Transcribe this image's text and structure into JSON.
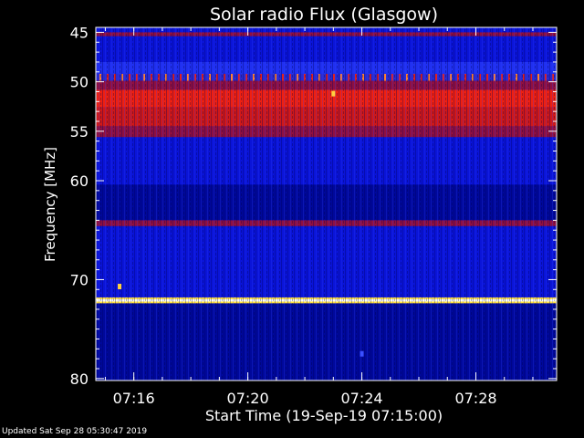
{
  "chart_data": {
    "type": "heatmap",
    "title": "Solar radio Flux (Glasgow)",
    "xlabel": "Start Time (19-Sep-19 07:15:00)",
    "ylabel": "Frequency [MHz]",
    "x_range": [
      "07:14:40",
      "07:30:50"
    ],
    "y_range": [
      44.5,
      80.2
    ],
    "y_ticks": [
      45,
      50,
      55,
      60,
      70,
      80
    ],
    "y_tick_labels": [
      "45",
      "50",
      "55",
      "60",
      "70",
      "80"
    ],
    "x_ticks": [
      "07:16",
      "07:20",
      "07:24",
      "07:28"
    ],
    "colormap": [
      "#00008a",
      "#0010d0",
      "#1e2cf0",
      "#b01040",
      "#e01010",
      "#ff4020",
      "#ffd040",
      "#fffff0"
    ],
    "bands": [
      {
        "from": 44.5,
        "to": 45.0,
        "level": "blue"
      },
      {
        "from": 45.0,
        "to": 45.4,
        "level": "dark-red"
      },
      {
        "from": 45.4,
        "to": 48.0,
        "level": "blue"
      },
      {
        "from": 48.0,
        "to": 49.2,
        "level": "medium-blue"
      },
      {
        "from": 49.2,
        "to": 49.9,
        "level": "red-bursts"
      },
      {
        "from": 49.9,
        "to": 50.8,
        "level": "dark-red"
      },
      {
        "from": 50.8,
        "to": 52.6,
        "level": "bright-red"
      },
      {
        "from": 52.6,
        "to": 54.5,
        "level": "red"
      },
      {
        "from": 54.5,
        "to": 55.6,
        "level": "dark-red"
      },
      {
        "from": 55.6,
        "to": 60.4,
        "level": "blue"
      },
      {
        "from": 60.4,
        "to": 64.0,
        "level": "dark-blue"
      },
      {
        "from": 64.0,
        "to": 64.6,
        "level": "dark-red"
      },
      {
        "from": 64.6,
        "to": 71.8,
        "level": "blue"
      },
      {
        "from": 71.8,
        "to": 72.4,
        "level": "yellow"
      },
      {
        "from": 72.4,
        "to": 80.2,
        "level": "dark-blue"
      }
    ],
    "features": [
      {
        "time": "07:23:00",
        "freq": 51.2,
        "level": "yellow"
      },
      {
        "time": "07:15:30",
        "freq": 70.7,
        "level": "yellow"
      },
      {
        "time": "07:24:00",
        "freq": 77.5,
        "level": "medium-blue"
      }
    ]
  },
  "footer": {
    "updated": "Updated Sat Sep 28 05:30:47 2019"
  }
}
